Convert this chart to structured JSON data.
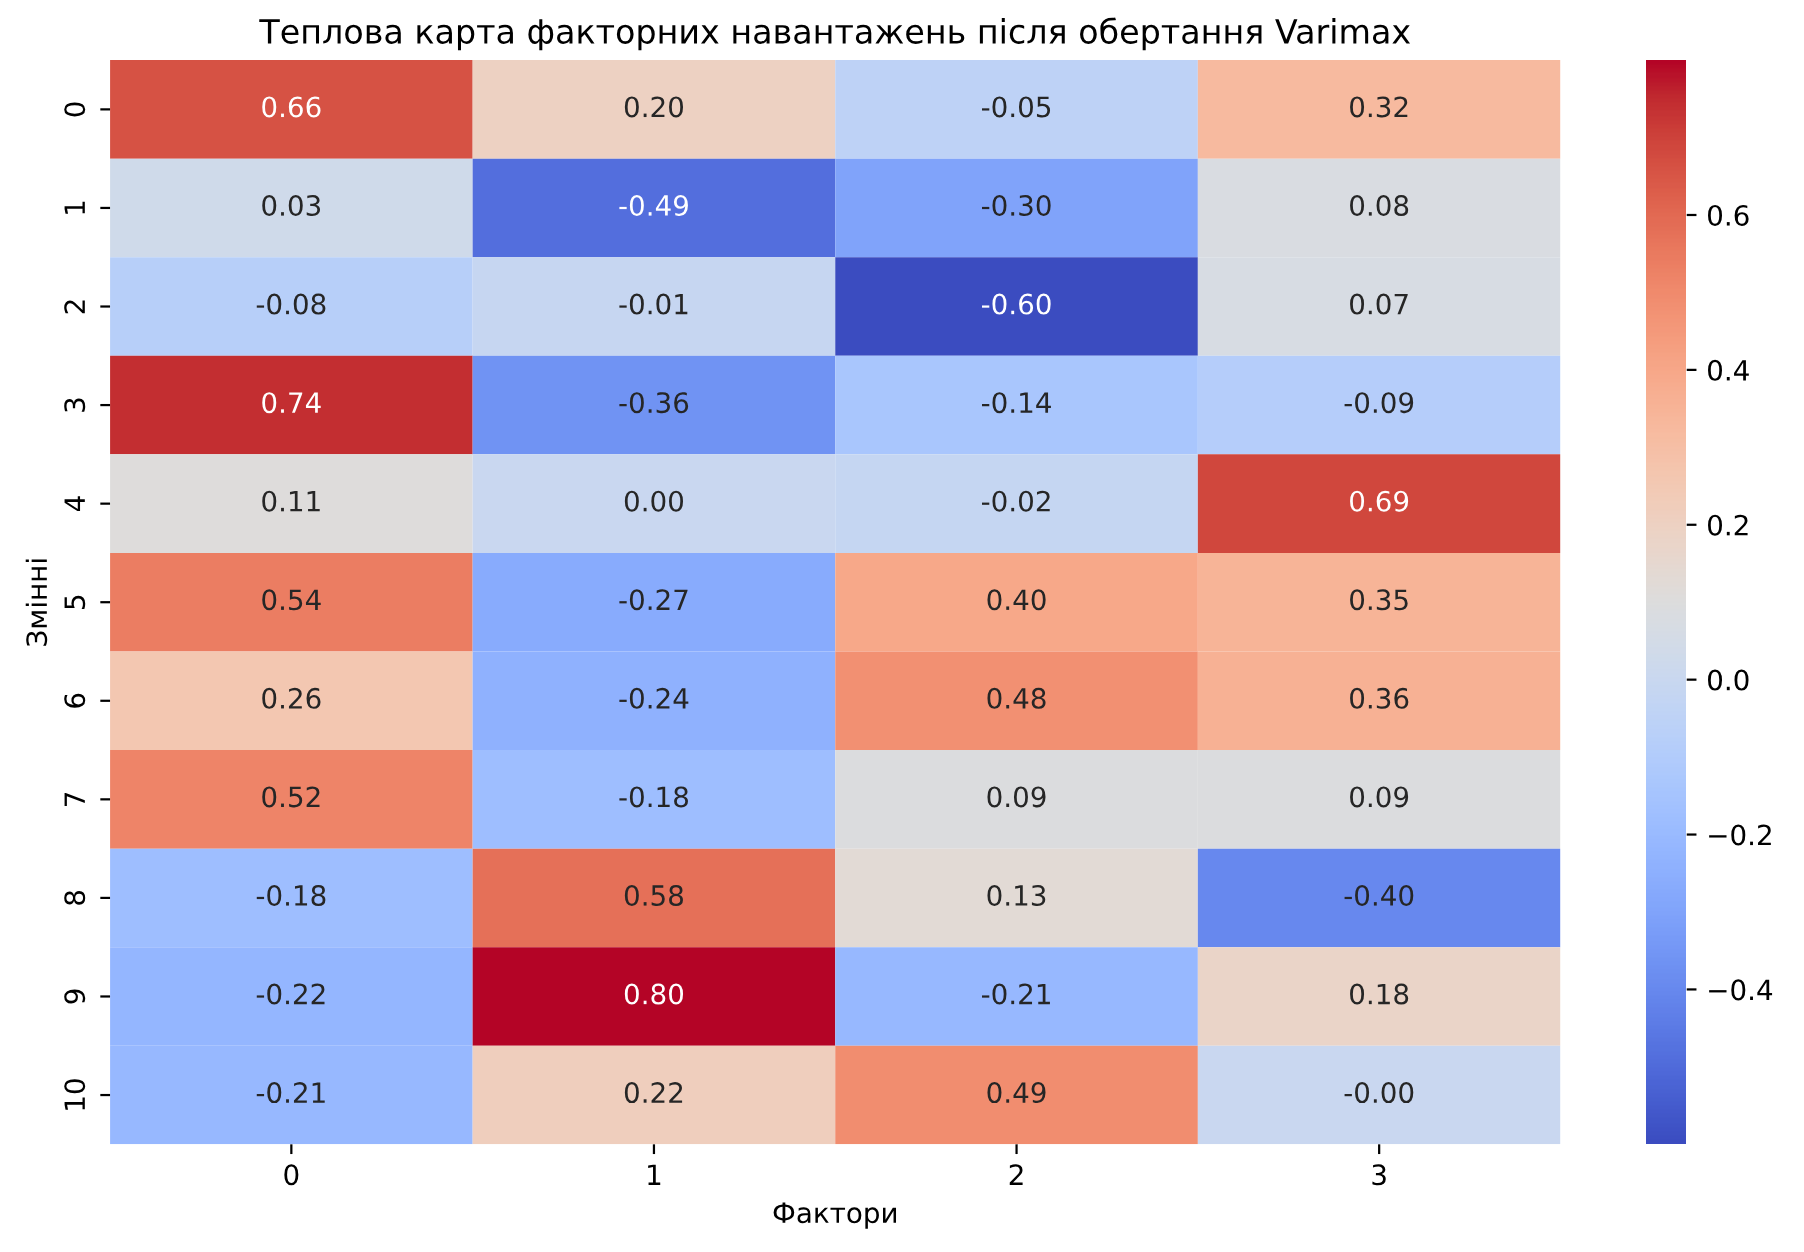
{
  "chart_data": {
    "type": "heatmap",
    "title": "Теплова карта факторних навантажень після обертання Varimax",
    "xlabel": "Фактори",
    "ylabel": "Змінні",
    "categories": [
      "0",
      "1",
      "2",
      "3"
    ],
    "y_categories": [
      "0",
      "1",
      "2",
      "3",
      "4",
      "5",
      "6",
      "7",
      "8",
      "9",
      "10"
    ],
    "cells": [
      [
        0.66,
        0.2,
        -0.05,
        0.32
      ],
      [
        0.03,
        -0.49,
        -0.3,
        0.08
      ],
      [
        -0.08,
        -0.01,
        -0.6,
        0.07
      ],
      [
        0.74,
        -0.36,
        -0.14,
        -0.09
      ],
      [
        0.11,
        0.0,
        -0.02,
        0.69
      ],
      [
        0.54,
        -0.27,
        0.4,
        0.35
      ],
      [
        0.26,
        -0.24,
        0.48,
        0.36
      ],
      [
        0.52,
        -0.18,
        0.09,
        0.09
      ],
      [
        -0.18,
        0.58,
        0.13,
        -0.4
      ],
      [
        -0.22,
        0.8,
        -0.21,
        0.18
      ],
      [
        -0.21,
        0.22,
        0.49,
        -0.0
      ]
    ],
    "cell_labels": [
      [
        "0.66",
        "0.20",
        "-0.05",
        "0.32"
      ],
      [
        "0.03",
        "-0.49",
        "-0.30",
        "0.08"
      ],
      [
        "-0.08",
        "-0.01",
        "-0.60",
        "0.07"
      ],
      [
        "0.74",
        "-0.36",
        "-0.14",
        "-0.09"
      ],
      [
        "0.11",
        "0.00",
        "-0.02",
        "0.69"
      ],
      [
        "0.54",
        "-0.27",
        "0.40",
        "0.35"
      ],
      [
        "0.26",
        "-0.24",
        "0.48",
        "0.36"
      ],
      [
        "0.52",
        "-0.18",
        "0.09",
        "0.09"
      ],
      [
        "-0.18",
        "0.58",
        "0.13",
        "-0.40"
      ],
      [
        "-0.22",
        "0.80",
        "-0.21",
        "0.18"
      ],
      [
        "-0.21",
        "0.22",
        "0.49",
        "-0.00"
      ]
    ],
    "clim": [
      -0.6,
      0.8
    ],
    "cticks": [
      {
        "value": -0.4,
        "label": "−0.4"
      },
      {
        "value": -0.2,
        "label": "−0.2"
      },
      {
        "value": 0.0,
        "label": "0.0"
      },
      {
        "value": 0.2,
        "label": "0.2"
      },
      {
        "value": 0.4,
        "label": "0.4"
      },
      {
        "value": 0.6,
        "label": "0.6"
      }
    ],
    "grid": false
  }
}
